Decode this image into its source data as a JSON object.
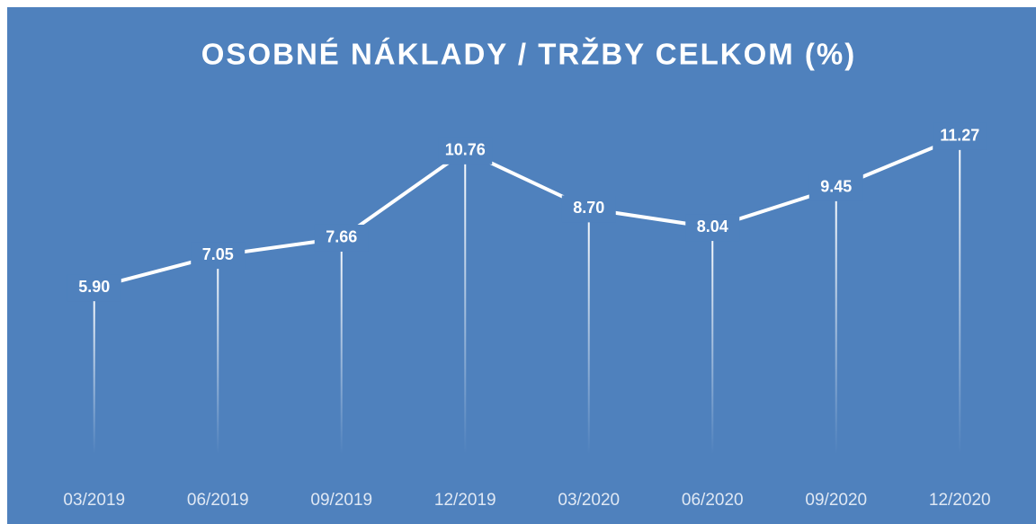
{
  "chart_data": {
    "type": "line",
    "title": "OSOBNÉ NÁKLADY / TRŽBY CELKOM (%)",
    "categories": [
      "03/2019",
      "06/2019",
      "09/2019",
      "12/2019",
      "03/2020",
      "06/2020",
      "09/2020",
      "12/2020"
    ],
    "values": [
      5.9,
      7.05,
      7.66,
      10.76,
      8.7,
      8.04,
      9.45,
      11.27
    ],
    "value_labels": [
      "5.90",
      "7.05",
      "7.66",
      "10.76",
      "8.70",
      "8.04",
      "9.45",
      "11.27"
    ],
    "color": "#ffffff",
    "ylim": [
      0,
      12
    ]
  }
}
